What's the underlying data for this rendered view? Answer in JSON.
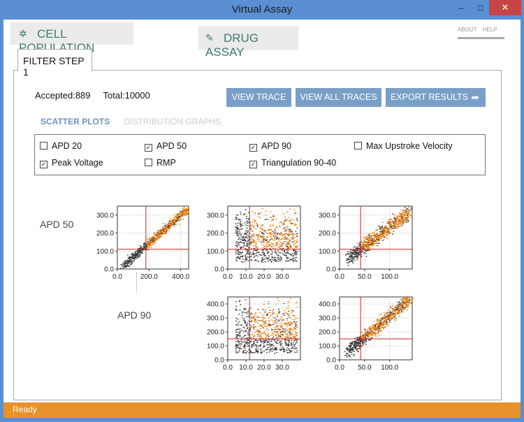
{
  "window": {
    "title": "Virtual Assay",
    "minimize": "–",
    "maximize": "□",
    "close": "✕"
  },
  "nav": {
    "cell_population": {
      "label": "CELL POPULATION",
      "icon": "cell-icon"
    },
    "drug_assay": {
      "label": "DRUG ASSAY",
      "icon": "pill-icon"
    },
    "about": "ABOUT",
    "help": "HELP"
  },
  "tab": {
    "label": "FILTER STEP 1"
  },
  "counts": {
    "accepted": "Accepted:889",
    "total": "Total:10000"
  },
  "actions": {
    "view_trace": "VIEW TRACE",
    "view_all_traces": "VIEW ALL TRACES",
    "export_results": "EXPORT RESULTS",
    "export_icon": "share-arrow-icon"
  },
  "subtabs": {
    "scatter": "SCATTER PLOTS",
    "distribution": "DISTRIBUTION GRAPHS"
  },
  "checkboxes": [
    {
      "label": "APD 20",
      "checked": false
    },
    {
      "label": "APD 50",
      "checked": true
    },
    {
      "label": "APD 90",
      "checked": true
    },
    {
      "label": "Max Upstroke Velocity",
      "checked": false
    },
    {
      "label": "Peak Voltage",
      "checked": true
    },
    {
      "label": "RMP",
      "checked": false
    },
    {
      "label": "Triangulation 90-40",
      "checked": true
    }
  ],
  "row_labels": {
    "apd50": "APD 50",
    "apd90": "APD 90"
  },
  "colors": {
    "accepted": "#f07d0a",
    "rejected": "#3a3a3a",
    "threshold": "#cc2222",
    "accent": "#7a9fc7",
    "status_bar": "#e8922c"
  },
  "chart_data": [
    {
      "type": "scatter",
      "row": "APD 50",
      "column": "APD 50",
      "xlim": [
        0,
        450
      ],
      "ylim": [
        0,
        350
      ],
      "xticks": [
        "0.0",
        "200.0",
        "400.0"
      ],
      "yticks": [
        "0.0",
        "100.0",
        "200.0",
        "300.0"
      ],
      "thresholds": {
        "x": 180,
        "y": 110
      }
    },
    {
      "type": "scatter",
      "row": "APD 50",
      "column": "Peak Voltage",
      "xlim": [
        0,
        40
      ],
      "ylim": [
        0,
        350
      ],
      "xticks": [
        "0.0",
        "10.0",
        "20.0",
        "30.0"
      ],
      "yticks": [
        "0.0",
        "100.0",
        "200.0",
        "300.0"
      ],
      "thresholds": {
        "x": 12,
        "y": 110
      }
    },
    {
      "type": "scatter",
      "row": "APD 50",
      "column": "Triangulation 90-40",
      "xlim": [
        0,
        145
      ],
      "ylim": [
        0,
        350
      ],
      "xticks": [
        "0.0",
        "50.0",
        "100.0"
      ],
      "yticks": [
        "0.0",
        "100.0",
        "200.0",
        "300.0"
      ],
      "thresholds": {
        "x": 42,
        "y": 110
      }
    },
    {
      "type": "scatter",
      "row": "APD 90",
      "column": "Peak Voltage",
      "xlim": [
        0,
        40
      ],
      "ylim": [
        0,
        450
      ],
      "xticks": [
        "0.0",
        "10.0",
        "20.0",
        "30.0"
      ],
      "yticks": [
        "0.0",
        "100.0",
        "200.0",
        "300.0",
        "400.0"
      ],
      "thresholds": {
        "x": 12,
        "y": 150
      }
    },
    {
      "type": "scatter",
      "row": "APD 90",
      "column": "Triangulation 90-40",
      "xlim": [
        0,
        145
      ],
      "ylim": [
        0,
        450
      ],
      "xticks": [
        "0.0",
        "50.0",
        "100.0"
      ],
      "yticks": [
        "0.0",
        "100.0",
        "200.0",
        "300.0",
        "400.0"
      ],
      "thresholds": {
        "x": 42,
        "y": 150
      }
    }
  ],
  "status": {
    "text": "Ready"
  }
}
